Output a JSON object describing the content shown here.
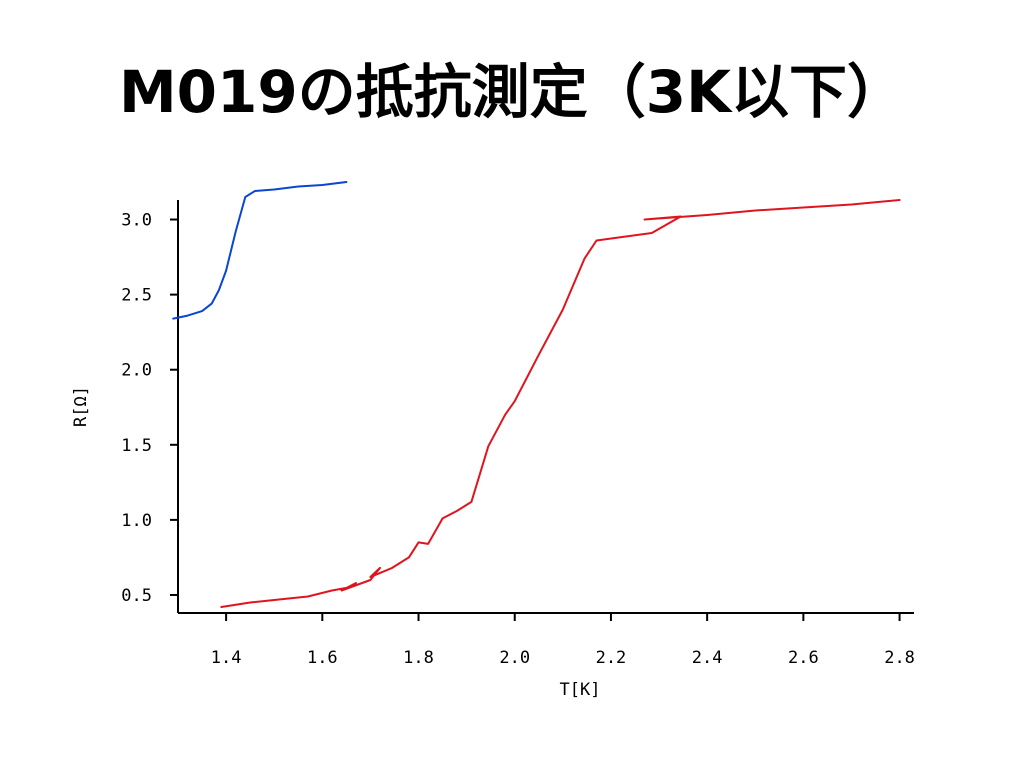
{
  "slide": {
    "title": "M019の抵抗測定（3K以下）"
  },
  "chart_data": {
    "type": "line",
    "title": "M019の抵抗測定（3K以下）",
    "xlabel": "T[K]",
    "ylabel": "R[Ω]",
    "xlim": [
      1.3,
      2.83
    ],
    "ylim": [
      0.38,
      3.13
    ],
    "x_ticks": [
      {
        "value": 1.4,
        "label": "1.4"
      },
      {
        "value": 1.6,
        "label": "1.6"
      },
      {
        "value": 1.8,
        "label": "1.8"
      },
      {
        "value": 2.0,
        "label": "2.0"
      },
      {
        "value": 2.2,
        "label": "2.2"
      },
      {
        "value": 2.4,
        "label": "2.4"
      },
      {
        "value": 2.6,
        "label": "2.6"
      },
      {
        "value": 2.8,
        "label": "2.8"
      }
    ],
    "y_ticks": [
      {
        "value": 0.5,
        "label": "0.5"
      },
      {
        "value": 1.0,
        "label": "1.0"
      },
      {
        "value": 1.5,
        "label": "1.5"
      },
      {
        "value": 2.0,
        "label": "2.0"
      },
      {
        "value": 2.5,
        "label": "2.5"
      },
      {
        "value": 3.0,
        "label": "3.0"
      }
    ],
    "grid": false,
    "legend": "none",
    "series": [
      {
        "color": "#0a46d2",
        "points": [
          [
            1.29,
            2.34
          ],
          [
            1.32,
            2.36
          ],
          [
            1.35,
            2.39
          ],
          [
            1.37,
            2.44
          ],
          [
            1.385,
            2.53
          ],
          [
            1.4,
            2.66
          ],
          [
            1.42,
            2.92
          ],
          [
            1.44,
            3.15
          ],
          [
            1.46,
            3.19
          ],
          [
            1.5,
            3.2
          ],
          [
            1.55,
            3.22
          ],
          [
            1.6,
            3.23
          ],
          [
            1.65,
            3.25
          ]
        ]
      },
      {
        "color": "#e0141e",
        "points": [
          [
            1.39,
            0.42
          ],
          [
            1.45,
            0.45
          ],
          [
            1.51,
            0.47
          ],
          [
            1.57,
            0.49
          ],
          [
            1.62,
            0.53
          ],
          [
            1.655,
            0.55
          ],
          [
            1.67,
            0.58
          ],
          [
            1.64,
            0.53
          ],
          [
            1.7,
            0.6
          ],
          [
            1.72,
            0.68
          ],
          [
            1.7,
            0.62
          ],
          [
            1.745,
            0.68
          ],
          [
            1.78,
            0.75
          ],
          [
            1.8,
            0.85
          ],
          [
            1.82,
            0.84
          ],
          [
            1.85,
            1.01
          ],
          [
            1.88,
            1.06
          ],
          [
            1.91,
            1.12
          ],
          [
            1.945,
            1.49
          ],
          [
            1.98,
            1.7
          ],
          [
            2.0,
            1.79
          ],
          [
            2.05,
            2.1
          ],
          [
            2.1,
            2.4
          ],
          [
            2.145,
            2.74
          ],
          [
            2.17,
            2.86
          ],
          [
            2.285,
            2.91
          ],
          [
            2.345,
            3.02
          ],
          [
            2.27,
            3.0
          ],
          [
            2.4,
            3.03
          ],
          [
            2.5,
            3.06
          ],
          [
            2.6,
            3.08
          ],
          [
            2.7,
            3.1
          ],
          [
            2.8,
            3.13
          ]
        ]
      }
    ]
  }
}
